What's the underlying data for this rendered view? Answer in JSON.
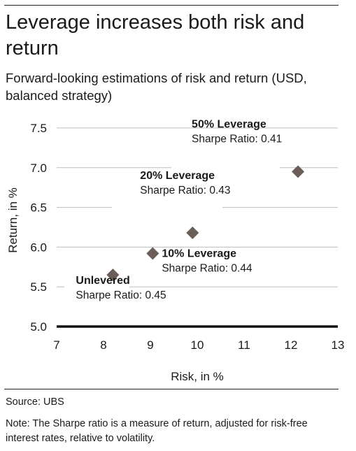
{
  "title": "Leverage increases both risk and return",
  "subtitle": "Forward-looking estimations of risk and return (USD, balanced strategy)",
  "source": "Source: UBS",
  "note": "Note: The Sharpe ratio is a measure of return, adjusted for risk-free interest rates, relative to volatility.",
  "colors": {
    "marker": "#6b5e59",
    "gridline": "#bdbdbd",
    "baseline": "#111111",
    "text": "#1a1a1a"
  },
  "chart_data": {
    "type": "scatter",
    "xlabel": "Risk, in %",
    "ylabel": "Return, in %",
    "xlim": [
      7,
      13
    ],
    "ylim": [
      5.0,
      7.5
    ],
    "xticks": [
      7,
      8,
      9,
      10,
      11,
      12,
      13
    ],
    "yticks": [
      "5.0",
      "5.5",
      "6.0",
      "6.5",
      "7.0",
      "7.5"
    ],
    "grid": "horizontal",
    "points": [
      {
        "x": 8.2,
        "y": 5.65,
        "label": "Unlevered",
        "sublabel": "Sharpe Ratio: 0.45"
      },
      {
        "x": 9.05,
        "y": 5.92,
        "label": "10% Leverage",
        "sublabel": "Sharpe Ratio: 0.44"
      },
      {
        "x": 9.9,
        "y": 6.18,
        "label": "20% Leverage",
        "sublabel": "Sharpe Ratio: 0.43"
      },
      {
        "x": 12.15,
        "y": 6.95,
        "label": "50% Leverage",
        "sublabel": "Sharpe Ratio: 0.41"
      }
    ]
  }
}
